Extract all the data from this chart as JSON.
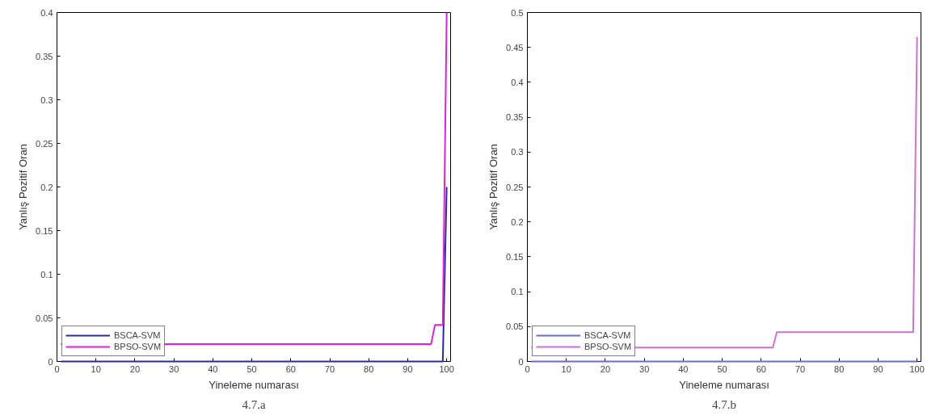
{
  "chart_data": [
    {
      "type": "line",
      "xlabel": "Yineleme numarası",
      "ylabel": "Yanlış Pozitif Oran",
      "xlim": [
        0,
        101
      ],
      "ylim": [
        0,
        0.4
      ],
      "xticks": [
        0,
        10,
        20,
        30,
        40,
        50,
        60,
        70,
        80,
        90,
        100
      ],
      "yticks": [
        0,
        0.05,
        0.1,
        0.15,
        0.2,
        0.25,
        0.3,
        0.35,
        0.4
      ],
      "legend": "bottom left",
      "grid": false,
      "annotations": [
        "4.7.a"
      ],
      "series": [
        {
          "name": "BSCA-SVM",
          "color": "#2a2aa8",
          "x": [
            1,
            99,
            100
          ],
          "values": [
            0,
            0,
            0.2
          ]
        },
        {
          "name": "BPSO-SVM",
          "color": "#e020e0",
          "x": [
            1,
            96,
            97,
            99,
            100
          ],
          "values": [
            0.02,
            0.02,
            0.042,
            0.042,
            0.4
          ]
        }
      ]
    },
    {
      "type": "line",
      "xlabel": "Yineleme numarası",
      "ylabel": "Yanlış Pozitif Oran",
      "xlim": [
        0,
        101
      ],
      "ylim": [
        0,
        0.5
      ],
      "xticks": [
        0,
        10,
        20,
        30,
        40,
        50,
        60,
        70,
        80,
        90,
        100
      ],
      "yticks": [
        0,
        0.05,
        0.1,
        0.15,
        0.2,
        0.25,
        0.3,
        0.35,
        0.4,
        0.45,
        0.5
      ],
      "legend": "bottom left",
      "grid": false,
      "annotations": [
        "4.7.b"
      ],
      "series": [
        {
          "name": "BSCA-SVM",
          "color": "#6a6ad8",
          "x": [
            1,
            100
          ],
          "values": [
            0,
            0
          ]
        },
        {
          "name": "BPSO-SVM",
          "color": "#d070d8",
          "x": [
            1,
            63,
            64,
            99,
            100
          ],
          "values": [
            0.02,
            0.02,
            0.042,
            0.042,
            0.465
          ]
        }
      ]
    }
  ]
}
